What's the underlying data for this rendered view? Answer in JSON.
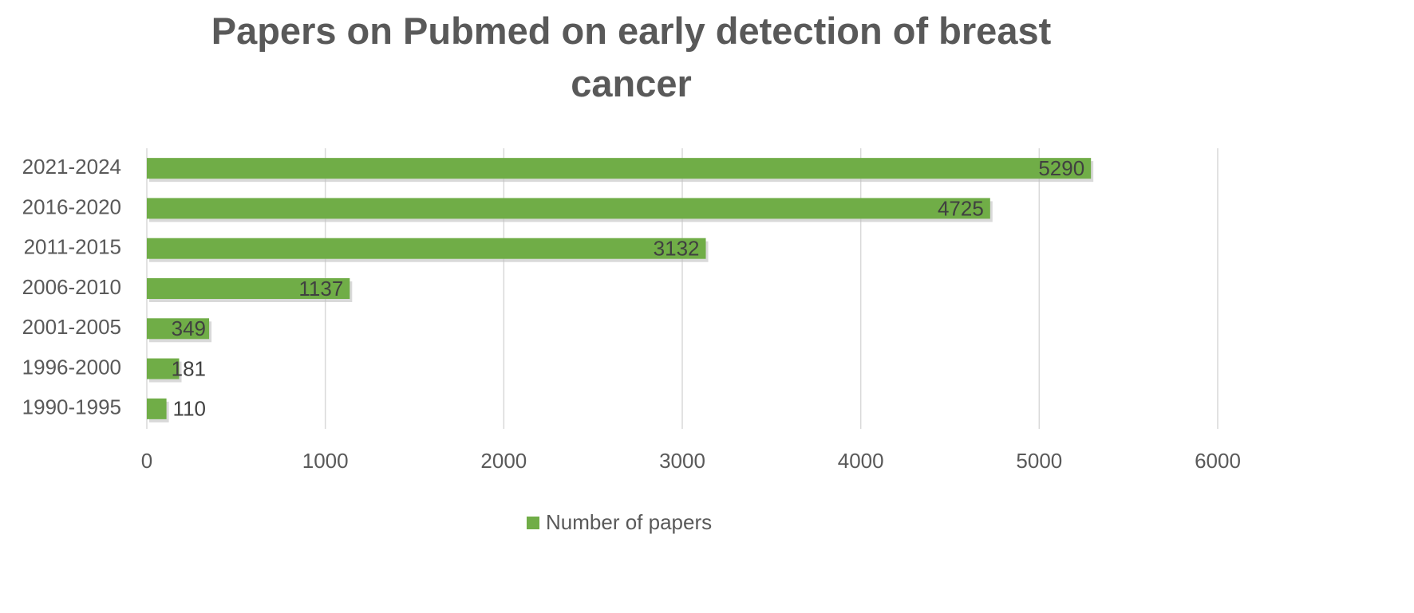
{
  "chart_data": {
    "type": "hbar",
    "title": "Papers on Pubmed on early detection of breast cancer",
    "categories": [
      "1990-1995",
      "1996-2000",
      "2001-2005",
      "2006-2010",
      "2011-2015",
      "2016-2020",
      "2021-2024"
    ],
    "series": [
      {
        "name": "Number of papers",
        "color": "#70ad47",
        "values": [
          110,
          181,
          349,
          1137,
          3132,
          4725,
          5290
        ]
      }
    ],
    "xlim": [
      0,
      6000
    ],
    "xticks": [
      0,
      1000,
      2000,
      3000,
      4000,
      5000,
      6000
    ],
    "grid": true,
    "legend": "bottom"
  }
}
